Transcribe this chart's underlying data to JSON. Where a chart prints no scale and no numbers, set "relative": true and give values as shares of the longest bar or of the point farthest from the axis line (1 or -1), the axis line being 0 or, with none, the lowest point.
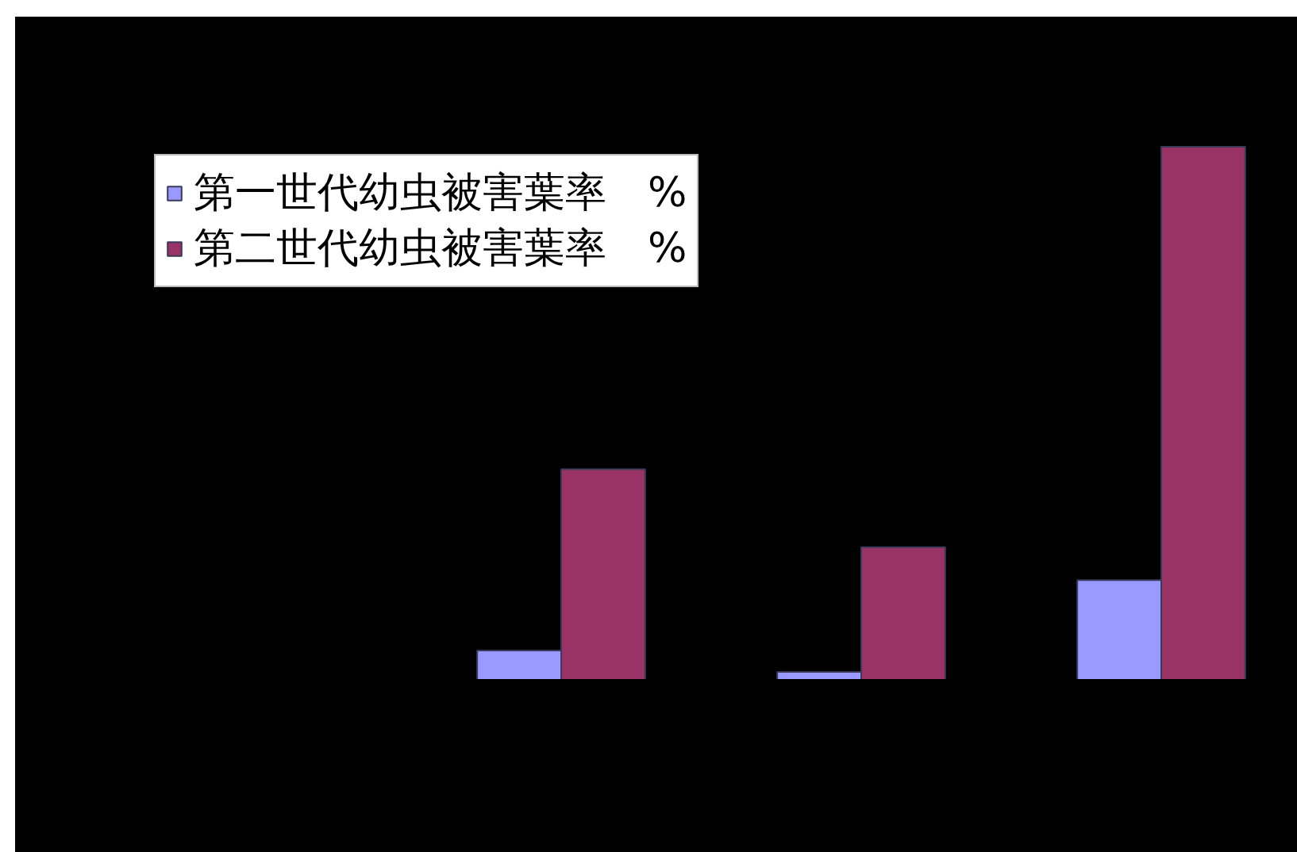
{
  "chart_data": {
    "type": "bar",
    "relative": true,
    "categories": [
      null,
      null,
      null
    ],
    "series": [
      {
        "name": "第一世代幼虫被害葉率　%",
        "color": "#9999ff",
        "values": [
          0.055,
          0.015,
          0.187
        ]
      },
      {
        "name": "第二世代幼虫被害葉率　%",
        "color": "#993366",
        "values": [
          0.395,
          0.249,
          1
        ]
      }
    ],
    "legend": "top left"
  }
}
